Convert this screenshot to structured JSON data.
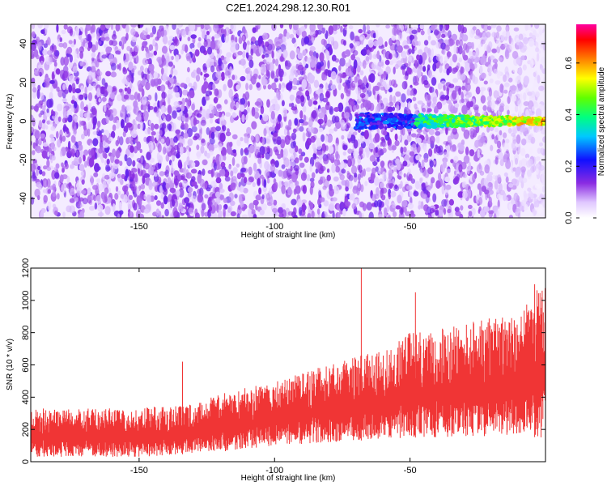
{
  "title": "C2E1.2024.298.12.30.R01",
  "chart_data": [
    {
      "type": "heatmap",
      "xlabel": "Height of straight line (km)",
      "ylabel": "Frequency (Hz)",
      "xlim": [
        -190,
        0
      ],
      "ylim": [
        -50,
        50
      ],
      "x_ticks": [
        -150,
        -100,
        -50
      ],
      "y_ticks": [
        -40,
        -20,
        0,
        20,
        40
      ],
      "colorbar": {
        "label": "Normalized spectral amplitude",
        "range": [
          0,
          0.75
        ],
        "ticks": [
          0.0,
          0.2,
          0.4,
          0.6
        ],
        "colormap": "rainbow (white-violet-blue-cyan-green-yellow-red-magenta)"
      },
      "features": {
        "background_noise": "violet speckle, amplitude ~0.05-0.15, fading toward 0 heights",
        "signal_band_center_hz": 0,
        "signal_onset_km": -70,
        "signal_amplitude_peak": 0.7
      }
    },
    {
      "type": "line",
      "xlabel": "Height of straight line (km)",
      "ylabel": "SNR (10 * v/v)",
      "xlim": [
        -190,
        0
      ],
      "ylim": [
        0,
        1200
      ],
      "x_ticks": [
        -150,
        -100,
        -50
      ],
      "y_ticks": [
        0,
        200,
        400,
        600,
        800,
        1000,
        1200
      ],
      "color": "#f03535",
      "envelope": {
        "x": [
          -190,
          -180,
          -170,
          -160,
          -150,
          -140,
          -130,
          -120,
          -110,
          -100,
          -90,
          -80,
          -70,
          -60,
          -50,
          -40,
          -30,
          -20,
          -10,
          -2
        ],
        "upper": [
          340,
          320,
          330,
          330,
          330,
          350,
          360,
          420,
          460,
          500,
          560,
          600,
          650,
          700,
          800,
          820,
          850,
          900,
          900,
          1100
        ],
        "lower": [
          30,
          30,
          30,
          30,
          30,
          40,
          50,
          60,
          80,
          100,
          110,
          120,
          130,
          140,
          150,
          150,
          150,
          160,
          160,
          150
        ],
        "peaks": [
          [
            -134,
            620
          ],
          [
            -68,
            1220
          ],
          [
            -48,
            1050
          ],
          [
            -4,
            1100
          ]
        ]
      }
    }
  ],
  "colors": {
    "snr_line": "#f03535",
    "frame": "#000000"
  }
}
